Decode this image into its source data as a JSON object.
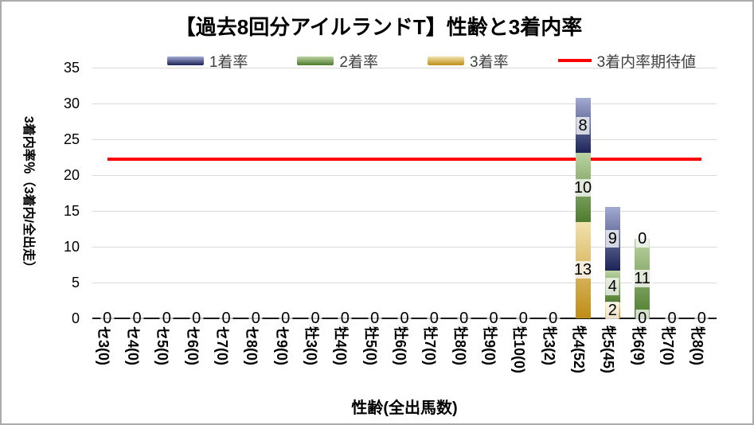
{
  "title": "【過去8回分アイルランドT】性齢と3着内率",
  "legend": [
    {
      "label": "1着率",
      "type": "box",
      "light": "#a3abd3",
      "dark": "#1c2457"
    },
    {
      "label": "2着率",
      "type": "box",
      "light": "#bcd4a3",
      "dark": "#4e7b2d"
    },
    {
      "label": "3着率",
      "type": "box",
      "light": "#f2e2ae",
      "dark": "#be8d15"
    },
    {
      "label": "3着内率期待値",
      "type": "line",
      "color": "#ff0000"
    }
  ],
  "y_axis": {
    "title": "3着内率％（3着内/全出走）",
    "ticks": [
      0,
      5,
      10,
      15,
      20,
      25,
      30,
      35
    ],
    "min": 0,
    "max": 35
  },
  "x_axis": {
    "title": "性齢(全出馬数)"
  },
  "colors": {
    "gridline": "#d9d9d9",
    "axis_line": "#1a1a1a",
    "expected_line": "#ff0000"
  },
  "chart_data": {
    "type": "bar",
    "stacked": true,
    "title": "【過去8回分アイルランドT】性齢と3着内率",
    "xlabel": "性齢(全出馬数)",
    "ylabel": "3着内率％（3着内/全出走）",
    "ylim": [
      0,
      35
    ],
    "grid": true,
    "legend_position": "top",
    "categories": [
      "セ3(0)",
      "セ4(0)",
      "セ5(0)",
      "セ6(0)",
      "セ7(0)",
      "セ8(0)",
      "セ9(0)",
      "牡3(0)",
      "牡4(0)",
      "牡5(0)",
      "牡6(0)",
      "牡7(0)",
      "牡8(0)",
      "牡9(0)",
      "牡10(0)",
      "牝3(2)",
      "牝4(52)",
      "牝5(45)",
      "牝6(9)",
      "牝7(0)",
      "牝8(0)"
    ],
    "series": [
      {
        "name": "3着率",
        "light": "#f2e2ae",
        "dark": "#be8d15",
        "values": [
          0,
          0,
          0,
          0,
          0,
          0,
          0,
          0,
          0,
          0,
          0,
          0,
          0,
          0,
          0,
          0,
          13.46,
          2.22,
          0,
          0,
          0
        ],
        "labels": [
          "0",
          "0",
          "0",
          "0",
          "0",
          "0",
          "0",
          "0",
          "0",
          "0",
          "0",
          "0",
          "0",
          "0",
          "0",
          "0",
          "13",
          "2",
          "0",
          "0",
          "0"
        ]
      },
      {
        "name": "2着率",
        "light": "#bcd4a3",
        "dark": "#4e7b2d",
        "values": [
          0,
          0,
          0,
          0,
          0,
          0,
          0,
          0,
          0,
          0,
          0,
          0,
          0,
          0,
          0,
          0,
          9.62,
          4.44,
          11.11,
          0,
          0
        ],
        "labels": [
          "0",
          "0",
          "0",
          "0",
          "0",
          "0",
          "0",
          "0",
          "0",
          "0",
          "0",
          "0",
          "0",
          "0",
          "0",
          "0",
          "10",
          "4",
          "11",
          "0",
          "0"
        ]
      },
      {
        "name": "1着率",
        "light": "#a3abd3",
        "dark": "#1c2457",
        "values": [
          0,
          0,
          0,
          0,
          0,
          0,
          0,
          0,
          0,
          0,
          0,
          0,
          0,
          0,
          0,
          0,
          7.69,
          8.89,
          0,
          0,
          0
        ],
        "labels": [
          "0",
          "0",
          "0",
          "0",
          "0",
          "0",
          "0",
          "0",
          "0",
          "0",
          "0",
          "0",
          "0",
          "0",
          "0",
          "0",
          "8",
          "9",
          "0",
          "0",
          "0"
        ]
      }
    ],
    "expected_line": {
      "name": "3着内率期待値",
      "value": 22.2,
      "color": "#ff0000"
    }
  }
}
